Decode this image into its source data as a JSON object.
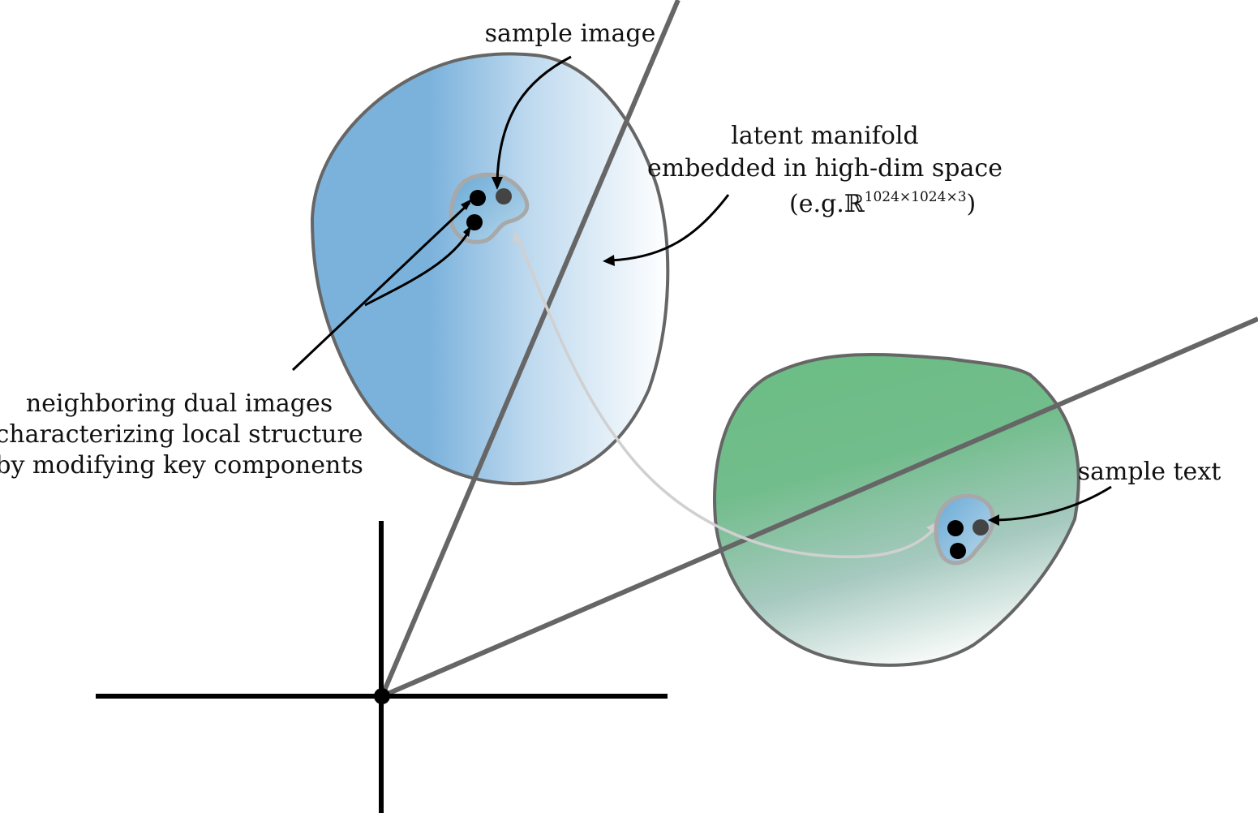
{
  "labels": {
    "sample_image": "sample image",
    "latent_manifold_line1": "latent manifold",
    "latent_manifold_line2": "embedded in high-dim space",
    "eg_prefix": "(e.g.",
    "real_symbol": "ℝ",
    "dimension_exponent": "1024×1024×3",
    "eg_suffix": ")",
    "neighbors_line1": "neighboring dual images",
    "neighbors_line2": "characterizing local structure",
    "neighbors_line3": "by modifying key components",
    "sample_text": "sample text"
  },
  "colors": {
    "image_manifold": "#7bb2dc",
    "text_manifold": "#6dbd86",
    "outline": "#666666",
    "axis": "#000000",
    "projection_line": "#666666",
    "connector": "#d0d0d0",
    "point": "#000000",
    "sample_point": "#444444"
  }
}
